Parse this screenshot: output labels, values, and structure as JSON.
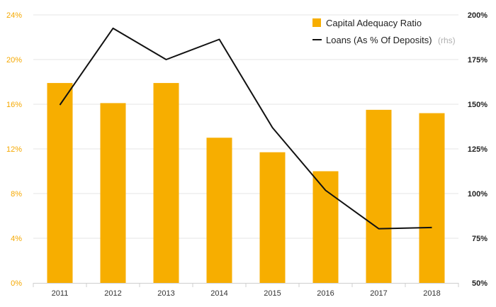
{
  "chart_data": {
    "type": "bar+line",
    "categories": [
      "2011",
      "2012",
      "2013",
      "2014",
      "2015",
      "2016",
      "2017",
      "2018"
    ],
    "series": [
      {
        "name": "Capital Adequacy Ratio",
        "type": "bar",
        "axis": "left",
        "color": "#f7ae00",
        "values": [
          17.9,
          16.1,
          17.9,
          13.0,
          11.7,
          10.0,
          15.5,
          15.2
        ]
      },
      {
        "name": "Loans (As % Of Deposits)",
        "note": "(rhs)",
        "type": "line",
        "axis": "right",
        "color": "#111111",
        "values": [
          149.6,
          192.5,
          175.0,
          186.3,
          136.9,
          101.8,
          80.3,
          81.0
        ]
      }
    ],
    "y_left": {
      "min": 0,
      "max": 24,
      "ticks": [
        0,
        4,
        8,
        12,
        16,
        20,
        24
      ],
      "tick_labels": [
        "0%",
        "4%",
        "8%",
        "12%",
        "16%",
        "20%",
        "24%"
      ]
    },
    "y_right": {
      "min": 50,
      "max": 200,
      "ticks": [
        50,
        75,
        100,
        125,
        150,
        175,
        200
      ],
      "tick_labels": [
        "50%",
        "75%",
        "100%",
        "125%",
        "150%",
        "175%",
        "200%"
      ]
    },
    "legend": {
      "position": "top-right",
      "items": [
        {
          "label": "Capital Adequacy Ratio",
          "swatch": "square",
          "color": "#f7ae00"
        },
        {
          "label": "Loans (As % Of Deposits)",
          "note": "(rhs)",
          "swatch": "line",
          "color": "#111111"
        }
      ]
    },
    "grid": true,
    "grid_color": "#e6e6e6",
    "axis_color": "#cfcfcf"
  }
}
